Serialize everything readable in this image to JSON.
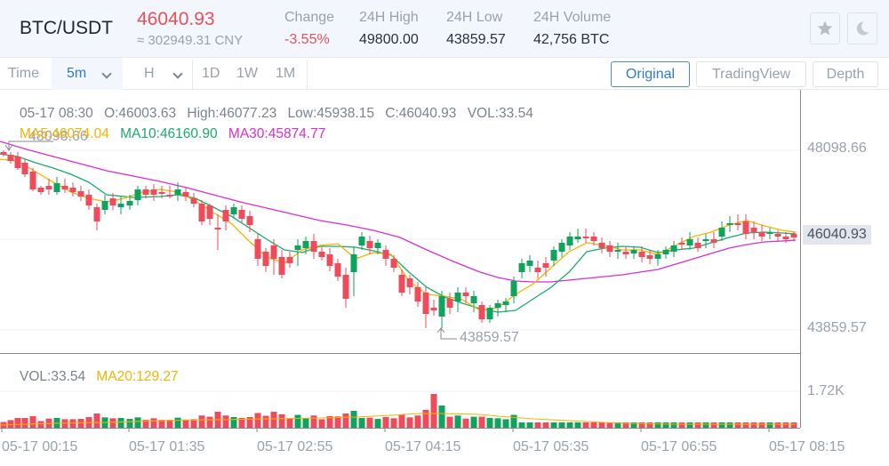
{
  "header": {
    "pair": "BTC/USDT",
    "price": "46040.93",
    "price_cny": "≈ 302949.31 CNY",
    "stats": [
      {
        "label": "Change",
        "value": "-3.55%",
        "negative": true
      },
      {
        "label": "24H High",
        "value": "49800.00"
      },
      {
        "label": "24H Low",
        "value": "43859.57"
      },
      {
        "label": "24H Volume",
        "value": "42,756 BTC"
      }
    ],
    "icons": [
      "star-icon",
      "moon-icon"
    ]
  },
  "toolbar": {
    "time_label": "Time",
    "interval_selected": "5m",
    "hour_label": "H",
    "ranges": [
      "1D",
      "1W",
      "1M"
    ],
    "views": [
      "Original",
      "TradingView",
      "Depth"
    ],
    "active_view": "Original"
  },
  "legend": {
    "date": "05-17 08:30",
    "open": "O:46003.63",
    "high": "High:46077.23",
    "low": "Low:45938.15",
    "close": "C:46040.93",
    "vol": "VOL:33.54",
    "ma5": "MA5:46074.04",
    "ma10": "MA10:46160.90",
    "ma30": "MA30:45874.77"
  },
  "volume_legend": {
    "vol": "VOL:33.54",
    "ma20": "MA20:129.27"
  },
  "axis": {
    "y_labels": [
      "48098.66",
      "46040.93",
      "43859.57"
    ],
    "current_price": "46040.93",
    "vol_label": "1.72K",
    "x_labels": [
      "05-17 00:15",
      "05-17 01:35",
      "05-17 02:55",
      "05-17 04:15",
      "05-17 05:35",
      "05-17 06:55",
      "05-17 08:15"
    ],
    "max_marker": "48098.66",
    "min_marker": "43859.57"
  },
  "colors": {
    "up": "#0fa35e",
    "down": "#ef4b5a",
    "ma5": "#f5b400",
    "ma10": "#1bab6d",
    "ma30": "#d92ed1",
    "accent": "#2f7bd0"
  },
  "chart_data": {
    "type": "candlestick",
    "title": "BTC/USDT 5m",
    "x_tick_labels": [
      "05-17 00:15",
      "05-17 01:35",
      "05-17 02:55",
      "05-17 04:15",
      "05-17 05:35",
      "05-17 06:55",
      "05-17 08:15"
    ],
    "y_tick_labels": [
      "48098.66",
      "46040.93",
      "43859.57"
    ],
    "ylim": [
      43600,
      48500
    ],
    "last_candle": {
      "time": "05-17 08:30",
      "open": 46003.63,
      "high": 46077.23,
      "low": 45938.15,
      "close": 46040.93,
      "volume": 33.54
    },
    "indicators": {
      "MA5": 46074.04,
      "MA10": 46160.9,
      "MA30": 45874.77,
      "VOL_MA20": 129.27
    },
    "max_price_marker": 48098.66,
    "min_price_marker": 43859.57,
    "volume_axis_label": "1.72K",
    "candles_ohlc_approx": [
      [
        48000,
        48050,
        47900,
        47950
      ],
      [
        47980,
        48098,
        47900,
        47920
      ],
      [
        47900,
        47950,
        47550,
        47600
      ],
      [
        47600,
        47650,
        47350,
        47400
      ],
      [
        47450,
        47500,
        47050,
        47100
      ],
      [
        47150,
        47300,
        47100,
        47120
      ],
      [
        47130,
        47350,
        47000,
        47350
      ],
      [
        47200,
        47420,
        47150,
        47420
      ],
      [
        47400,
        47500,
        47250,
        47300
      ],
      [
        47350,
        47450,
        47100,
        47150
      ],
      [
        47200,
        47250,
        46750,
        46800
      ],
      [
        46850,
        46900,
        46500,
        46550
      ],
      [
        46600,
        46650,
        46150,
        46200
      ],
      [
        46250,
        46950,
        46200,
        46900
      ],
      [
        46850,
        47000,
        46700,
        46950
      ],
      [
        46950,
        47100,
        46400,
        46450
      ],
      [
        46450,
        46800,
        46350,
        46750
      ],
      [
        46750,
        47300,
        46700,
        47250
      ],
      [
        47200,
        47250,
        47100,
        47150
      ],
      [
        47150,
        47300,
        46900,
        47050
      ],
      [
        47050,
        47300,
        46950,
        47200
      ],
      [
        47000,
        47200,
        46850,
        47100
      ],
      [
        47050,
        47250,
        46900,
        47150
      ],
      [
        47100,
        47250,
        46850,
        46900
      ]
    ],
    "volume_bars_approx": [
      20,
      25,
      18,
      22,
      60,
      40,
      45,
      35,
      30,
      55,
      40,
      45,
      110,
      60,
      40,
      35,
      25,
      40,
      35,
      40,
      35,
      40,
      60,
      30
    ]
  }
}
